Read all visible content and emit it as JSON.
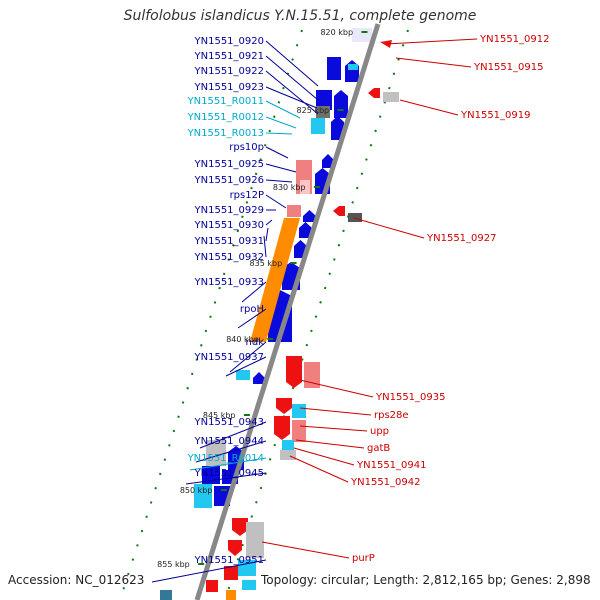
{
  "title": "Sulfolobus islandicus Y.N.15.51, complete genome",
  "footer": {
    "accession": "Accession: NC_012623",
    "topology": "Topology: circular; Length: 2,812,165 bp; Genes: 2,898"
  },
  "colors": {
    "backbone": "#888888",
    "cds_blue": "#0a0adc",
    "cds_red": "#ee1111",
    "pink": "#f08080",
    "cyan": "#22c8f0",
    "gray": "#c0c0c0",
    "dark_gray": "#555555",
    "orange": "#ff8c00",
    "rna_cyan": "#00aacc",
    "tick_green": "#117711",
    "label_left": "#000099",
    "label_right": "#cc0000"
  },
  "kbp_ticks": [
    "820 kbp",
    "825 kbp",
    "830 kbp",
    "835 kbp",
    "840 kbp",
    "845 kbp",
    "850 kbp",
    "855 kbp"
  ],
  "left_labels": [
    {
      "text": "YN1551_0920",
      "type": "cds"
    },
    {
      "text": "YN1551_0921",
      "type": "cds"
    },
    {
      "text": "YN1551_0922",
      "type": "cds"
    },
    {
      "text": "YN1551_0923",
      "type": "cds"
    },
    {
      "text": "YN1551_R0011",
      "type": "rna"
    },
    {
      "text": "YN1551_R0012",
      "type": "rna"
    },
    {
      "text": "YN1551_R0013",
      "type": "rna"
    },
    {
      "text": "rps10p",
      "type": "cds"
    },
    {
      "text": "YN1551_0925",
      "type": "cds"
    },
    {
      "text": "YN1551_0926",
      "type": "cds"
    },
    {
      "text": "rps12P",
      "type": "cds"
    },
    {
      "text": "YN1551_0929",
      "type": "cds"
    },
    {
      "text": "YN1551_0930",
      "type": "cds"
    },
    {
      "text": "YN1551_0931",
      "type": "cds"
    },
    {
      "text": "YN1551_0932",
      "type": "cds"
    },
    {
      "text": "YN1551_0933",
      "type": "cds"
    },
    {
      "text": "rpoH",
      "type": "cds"
    },
    {
      "text": "ndk",
      "type": "cds"
    },
    {
      "text": "YN1551_0937",
      "type": "cds"
    },
    {
      "text": "YN1551_0943",
      "type": "cds"
    },
    {
      "text": "YN1551_0944",
      "type": "cds"
    },
    {
      "text": "YN1551_R0014",
      "type": "rna"
    },
    {
      "text": "YN1551_0945",
      "type": "cds"
    },
    {
      "text": "YN1551_0951",
      "type": "cds"
    }
  ],
  "right_labels": [
    {
      "text": "YN1551_0912"
    },
    {
      "text": "YN1551_0915"
    },
    {
      "text": "YN1551_0919"
    },
    {
      "text": "YN1551_0927"
    },
    {
      "text": "YN1551_0935"
    },
    {
      "text": "rps28e"
    },
    {
      "text": "upp"
    },
    {
      "text": "gatB"
    },
    {
      "text": "YN1551_0941"
    },
    {
      "text": "YN1551_0942"
    },
    {
      "text": "purP"
    }
  ]
}
